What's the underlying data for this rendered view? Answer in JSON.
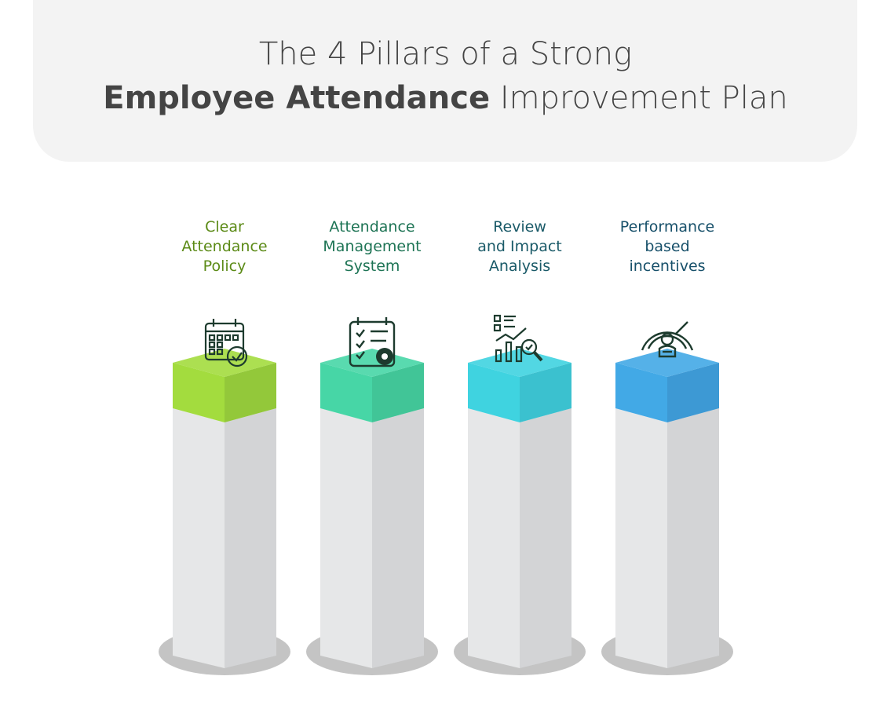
{
  "title": {
    "line1": "The 4 Pillars of a Strong",
    "line2_bold": "Employee Attendance",
    "line2_rest": " Improvement Plan"
  },
  "pillars": [
    {
      "label_lines": [
        "Clear",
        "Attendance",
        "Policy"
      ],
      "icon": "calendar-check-icon",
      "cap_color": "#a3dc3e",
      "cap_side_color": "#93c83a",
      "text_color": "#5b8a16"
    },
    {
      "label_lines": [
        "Attendance",
        "Management",
        "System"
      ],
      "icon": "checklist-gear-icon",
      "cap_color": "#47d6a6",
      "cap_side_color": "#41c597",
      "text_color": "#1e7455"
    },
    {
      "label_lines": [
        "Review",
        "and Impact",
        "Analysis"
      ],
      "icon": "chart-magnifier-icon",
      "cap_color": "#3fd3e0",
      "cap_side_color": "#3bc1cf",
      "text_color": "#1a5a68"
    },
    {
      "label_lines": [
        "Performance",
        "based",
        "incentives"
      ],
      "icon": "performance-gauge-icon",
      "cap_color": "#42a9e6",
      "cap_side_color": "#3d99d4",
      "text_color": "#17506a"
    }
  ]
}
